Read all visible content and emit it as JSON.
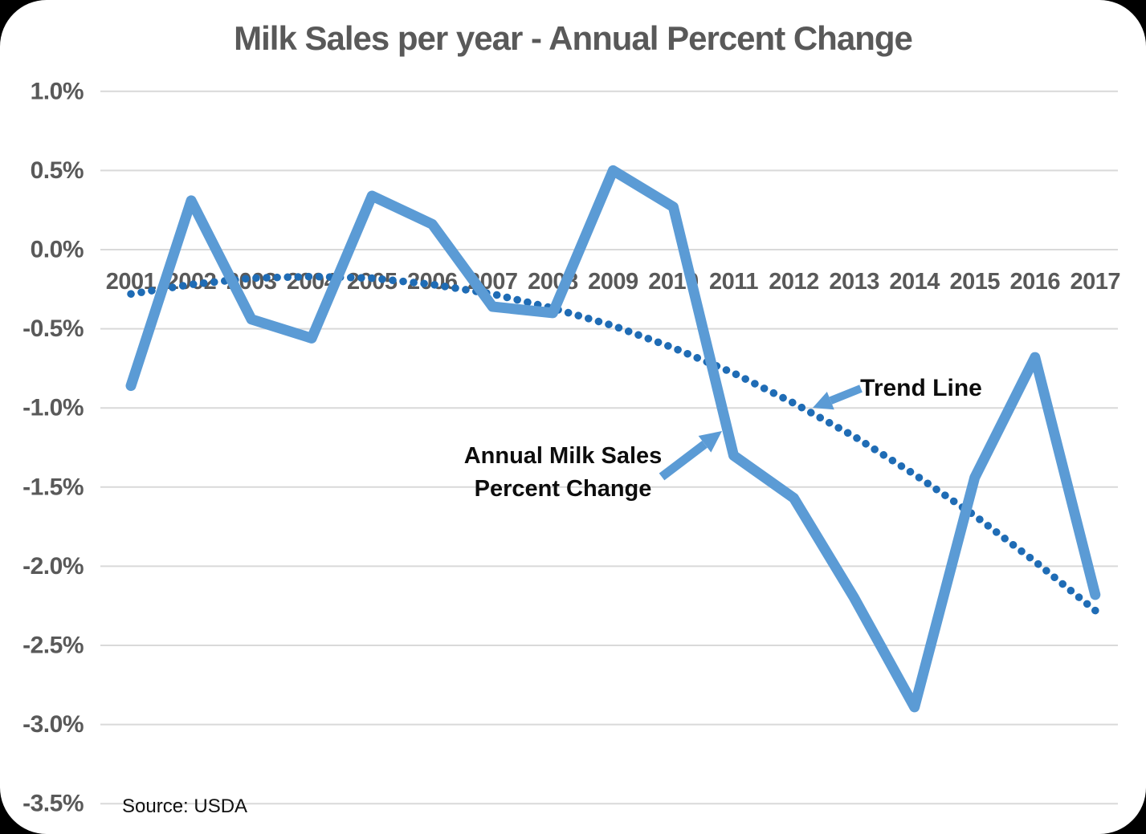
{
  "chart_data": {
    "type": "line",
    "title": "Milk Sales per year - Annual Percent Change",
    "x": [
      "2001",
      "2002",
      "2003",
      "2004",
      "2005",
      "2006",
      "2007",
      "2008",
      "2009",
      "2010",
      "2011",
      "2012",
      "2013",
      "2014",
      "2015",
      "2016",
      "2017"
    ],
    "series": [
      {
        "name": "Annual Milk Sales Percent Change",
        "style": "solid",
        "color": "#5B9BD5",
        "values": [
          -0.86,
          0.31,
          -0.44,
          -0.56,
          0.34,
          0.16,
          -0.36,
          -0.4,
          0.5,
          0.27,
          -1.3,
          -1.57,
          -2.2,
          -2.89,
          -1.44,
          -0.68,
          -2.18
        ]
      },
      {
        "name": "Trend Line",
        "style": "dotted",
        "color": "#1F6CB5",
        "values": [
          -0.28,
          -0.22,
          -0.18,
          -0.17,
          -0.18,
          -0.22,
          -0.28,
          -0.37,
          -0.48,
          -0.62,
          -0.78,
          -0.97,
          -1.18,
          -1.42,
          -1.68,
          -1.97,
          -2.28
        ]
      }
    ],
    "y_ticks": [
      "1.0%",
      "0.5%",
      "0.0%",
      "-0.5%",
      "-1.0%",
      "-1.5%",
      "-2.0%",
      "-2.5%",
      "-3.0%",
      "-3.5%"
    ],
    "y_tick_values": [
      1.0,
      0.5,
      0.0,
      -0.5,
      -1.0,
      -1.5,
      -2.0,
      -2.5,
      -3.0,
      -3.5
    ],
    "ylim": [
      -3.5,
      1.0
    ],
    "grid": true,
    "legend_position": "none",
    "gridline_color": "#D9D9D9",
    "tick_label_color": "#595959"
  },
  "annotations": {
    "trend_label": "Trend Line",
    "annual_label_line1": "Annual Milk Sales",
    "annual_label_line2": "Percent Change",
    "arrow_color": "#5B9BD5"
  },
  "source": {
    "text": "Source: USDA"
  },
  "colors": {
    "background": "#000000",
    "card": "#FFFFFF",
    "title": "#595959"
  }
}
